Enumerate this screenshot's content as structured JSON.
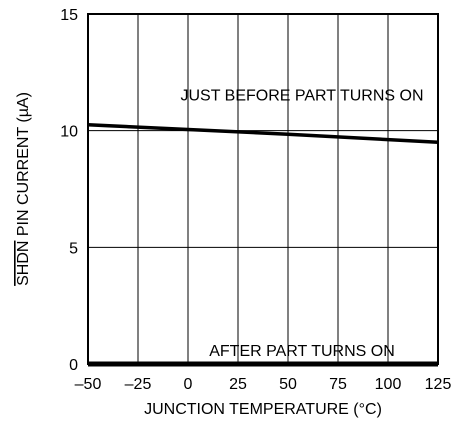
{
  "chart_data": {
    "type": "line",
    "title": "",
    "xlabel": "JUNCTION TEMPERATURE (°C)",
    "ylabel_overlined": "SHDN",
    "ylabel_rest": " PIN CURRENT (µA)",
    "xlim": [
      -50,
      125
    ],
    "ylim": [
      0,
      15
    ],
    "xticks": [
      -50,
      -25,
      0,
      25,
      50,
      75,
      100,
      125
    ],
    "xtick_labels": [
      "–50",
      "–25",
      "0",
      "25",
      "50",
      "75",
      "100",
      "125"
    ],
    "yticks": [
      0,
      5,
      10,
      15
    ],
    "ytick_labels": [
      "0",
      "5",
      "10",
      "15"
    ],
    "grid": true,
    "series": [
      {
        "x": [
          -50,
          0,
          50,
          125
        ],
        "y": [
          10.25,
          10.05,
          9.85,
          9.5
        ]
      },
      {
        "x": [
          -50,
          125
        ],
        "y": [
          0,
          0
        ]
      }
    ],
    "annotations": [
      {
        "text": "JUST BEFORE PART TURNS ON",
        "x": 57,
        "y": 11.55
      },
      {
        "text": "AFTER PART TURNS ON",
        "x": 57,
        "y": 0.6
      }
    ]
  }
}
